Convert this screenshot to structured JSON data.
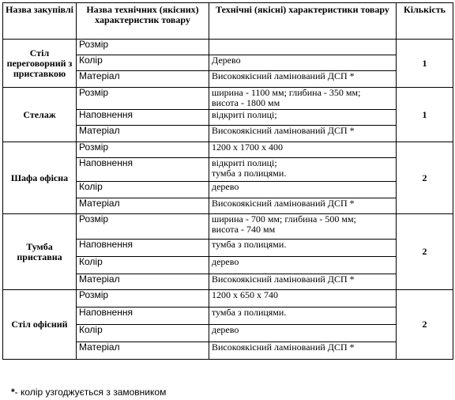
{
  "headers": {
    "name": "Назва закупівлі",
    "attr": "Назва технічних (якісних) характеристик товару",
    "value": "Технічні (якісні) характеристики товару",
    "qty": "Кількість"
  },
  "items": [
    {
      "name": "Стіл переговорний з приставкою",
      "qty": "1",
      "rows": [
        {
          "attr": "Розмір",
          "value": ""
        },
        {
          "attr": "Колір",
          "value": "Дерево"
        },
        {
          "attr": "Матеріал",
          "value": "Високоякісний ламінований ДСП *"
        }
      ]
    },
    {
      "name": "Стелаж",
      "qty": "1",
      "rows": [
        {
          "attr": "Розмір",
          "value": "ширина - 1100 мм; глибина - 350 мм;\nвисота - 1800 мм"
        },
        {
          "attr": "Наповнення",
          "value": "відкриті полиці;"
        },
        {
          "attr": "Матеріал",
          "value": "Високоякісний ламінований ДСП *"
        }
      ]
    },
    {
      "name": "Шафа офісна",
      "qty": "2",
      "rows": [
        {
          "attr": "Розмір",
          "value": "1200 х 1700 х 400"
        },
        {
          "attr": "Наповнення",
          "value": "відкриті полиці;\nтумба з полицями."
        },
        {
          "attr": "Колір",
          "value": "дерево"
        },
        {
          "attr": "Матеріал",
          "value": "Високоякісний ламінований ДСП *"
        }
      ]
    },
    {
      "name": "Тумба приставна",
      "qty": "2",
      "rows": [
        {
          "attr": "Розмір",
          "value": "ширина - 700 мм; глибина - 500 мм;\nвисота - 740 мм"
        },
        {
          "attr": "Наповнення",
          "value": "тумба з полицями."
        },
        {
          "attr": "Колір",
          "value": "дерево"
        },
        {
          "attr": "Матеріал",
          "value": "Високоякісний ламінований ДСП *"
        }
      ]
    },
    {
      "name": "Стіл офісний",
      "qty": "2",
      "rows": [
        {
          "attr": "Розмір",
          "value": "1200 х 650 х 740"
        },
        {
          "attr": "Наповнення",
          "value": "тумба з полицями."
        },
        {
          "attr": "Колір",
          "value": "дерево"
        },
        {
          "attr": "Матеріал",
          "value": "Високоякісний ламінований ДСП *"
        }
      ]
    }
  ],
  "footnote": {
    "mark": "*",
    "text": "- колір узгоджується з замовником"
  }
}
